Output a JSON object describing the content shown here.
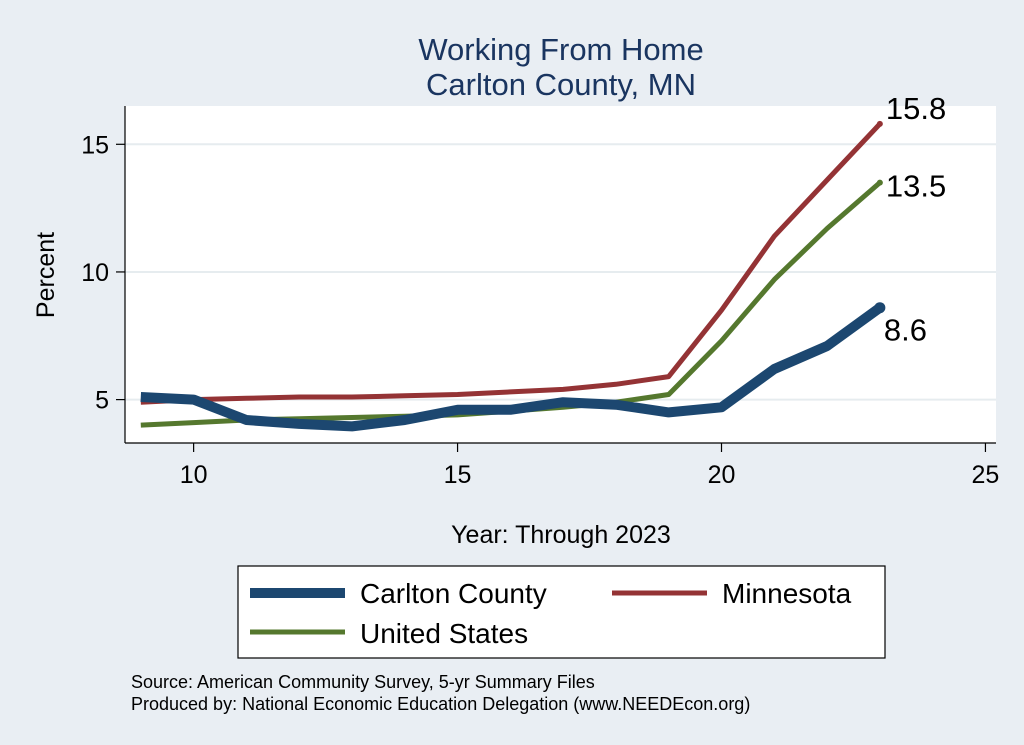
{
  "chart_data": {
    "type": "line",
    "title": [
      "Working From Home",
      "Carlton County, MN"
    ],
    "xlabel": "Year: Through 2023",
    "ylabel": "Percent",
    "xlim": [
      8.7,
      25.2
    ],
    "ylim": [
      3.3,
      16.5
    ],
    "xticks": [
      10,
      15,
      20,
      25
    ],
    "yticks": [
      5,
      10,
      15
    ],
    "x": [
      9,
      10,
      11,
      12,
      13,
      14,
      15,
      16,
      17,
      18,
      19,
      20,
      21,
      22,
      23
    ],
    "series": [
      {
        "name": "United States",
        "color": "#55782e",
        "values": [
          4.0,
          4.1,
          4.2,
          4.25,
          4.3,
          4.35,
          4.4,
          4.55,
          4.7,
          4.9,
          5.2,
          7.3,
          9.7,
          11.7,
          13.5
        ],
        "end_label": "13.5"
      },
      {
        "name": "Minnesota",
        "color": "#943335",
        "values": [
          4.9,
          5.0,
          5.05,
          5.1,
          5.1,
          5.15,
          5.2,
          5.3,
          5.4,
          5.6,
          5.9,
          8.5,
          11.4,
          13.6,
          15.8
        ],
        "end_label": "15.8"
      },
      {
        "name": "Carlton County",
        "color": "#1c4770",
        "values": [
          5.1,
          5.0,
          4.2,
          4.05,
          3.95,
          4.2,
          4.6,
          4.6,
          4.9,
          4.8,
          4.5,
          4.7,
          6.2,
          7.1,
          8.6
        ],
        "end_label": "8.6"
      }
    ],
    "legend": {
      "position": "bottom",
      "entries": [
        "Carlton County",
        "Minnesota",
        "United States"
      ]
    },
    "grid": true
  },
  "notes": {
    "source": "Source: American Community Survey, 5-yr Summary Files",
    "produced_by": "Produced by: National Economic Education Delegation (www.NEEDEcon.org)"
  }
}
